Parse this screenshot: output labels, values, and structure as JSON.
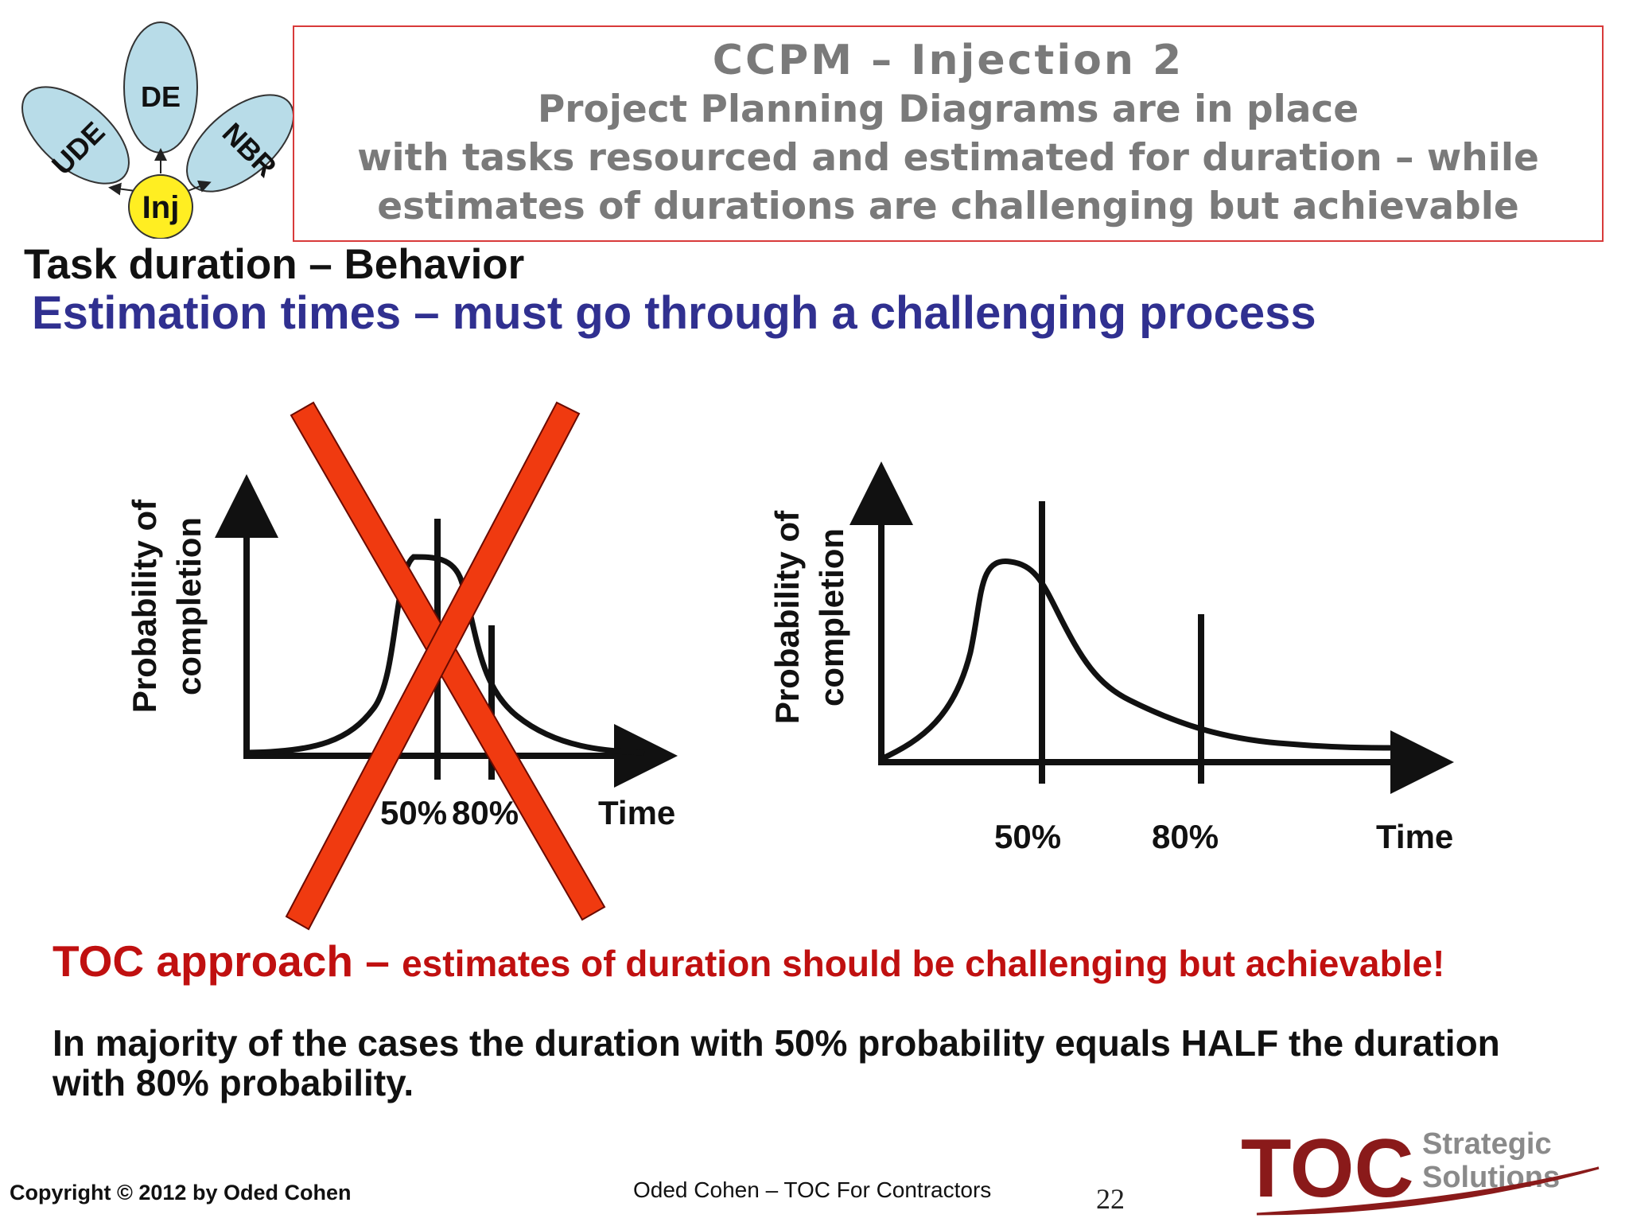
{
  "logo_flower": {
    "center": "Inj",
    "petals": [
      "UDE",
      "DE",
      "NBR"
    ]
  },
  "header": {
    "line1": "CCPM – Injection 2",
    "line2": "Project Planning Diagrams are in place",
    "line3": "with tasks resourced and estimated for duration – while",
    "line4": "estimates of durations are challenging but achievable"
  },
  "task_heading": "Task duration – Behavior",
  "sub_heading": "Estimation times – must go through a challenging process",
  "colors": {
    "heading_blue": "#303090",
    "toc_red": "#c01010",
    "cross_red": "#f03a10",
    "logo_red": "#8a1a1a"
  },
  "chart_data": [
    {
      "type": "line",
      "crossed_out": true,
      "ylabel": "Probability of completion",
      "xlabel": "Time",
      "markers": [
        "50%",
        "80%"
      ],
      "shape": "symmetric bell curve; 50% line at the peak, 80% line just after it"
    },
    {
      "type": "line",
      "crossed_out": false,
      "ylabel": "Probability of completion",
      "xlabel": "Time",
      "markers": [
        "50%",
        "80%"
      ],
      "shape": "right-skewed curve with long tail; 80% line far to the right of the 50% line"
    }
  ],
  "chart1": {
    "ylabel_line1": "Probability of",
    "ylabel_line2": "completion",
    "xlabel": "Time",
    "m50": "50%",
    "m80": "80%"
  },
  "chart2": {
    "ylabel_line1": "Probability of",
    "ylabel_line2": "completion",
    "xlabel": "Time",
    "m50": "50%",
    "m80": "80%"
  },
  "toc_approach": {
    "lead": "TOC approach – ",
    "rest": "estimates of duration should be challenging but achievable!"
  },
  "majority_text": "In majority of the cases the duration with 50% probability equals HALF the duration with 80% probability.",
  "footer": {
    "copyright": "Copyright © 2012 by Oded Cohen",
    "center": "Oded Cohen – TOC For Contractors",
    "page": "22"
  },
  "company_logo": {
    "main": "TOC",
    "line1": "Strategic",
    "line2": "Solutions"
  }
}
